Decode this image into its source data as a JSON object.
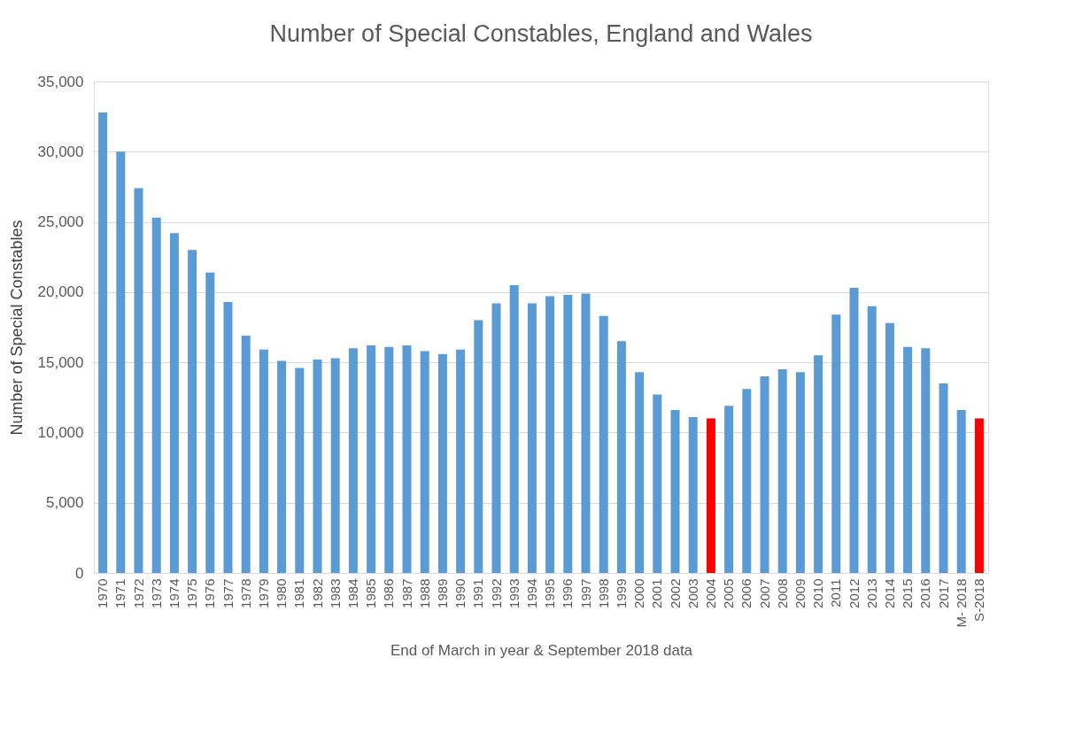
{
  "chart_data": {
    "type": "bar",
    "title": "Number of Special Constables, England and Wales",
    "xlabel": "End of March in year & September 2018 data",
    "ylabel": "Number of Special Constables",
    "categories": [
      "1970",
      "1971",
      "1972",
      "1973",
      "1974",
      "1975",
      "1976",
      "1977",
      "1978",
      "1979",
      "1980",
      "1981",
      "1982",
      "1983",
      "1984",
      "1985",
      "1986",
      "1987",
      "1988",
      "1989",
      "1990",
      "1991",
      "1992",
      "1993",
      "1994",
      "1995",
      "1996",
      "1997",
      "1998",
      "1999",
      "2000",
      "2001",
      "2002",
      "2003",
      "2004",
      "2005",
      "2006",
      "2007",
      "2008",
      "2009",
      "2010",
      "2011",
      "2012",
      "2013",
      "2014",
      "2015",
      "2016",
      "2017",
      "M- 2018",
      "S-2018"
    ],
    "values": [
      32800,
      30000,
      27400,
      25300,
      24200,
      23000,
      21400,
      19300,
      16900,
      15900,
      15100,
      14600,
      15200,
      15300,
      16000,
      16200,
      16100,
      16200,
      15800,
      15600,
      15900,
      18000,
      19200,
      20500,
      19200,
      19700,
      19800,
      19900,
      18300,
      16500,
      14300,
      12700,
      11600,
      11100,
      11000,
      11900,
      13100,
      14000,
      14500,
      14300,
      15500,
      18400,
      20300,
      19000,
      17800,
      16100,
      16000,
      13500,
      11600,
      11000
    ],
    "colors": [
      "#5b9bd5",
      "#5b9bd5",
      "#5b9bd5",
      "#5b9bd5",
      "#5b9bd5",
      "#5b9bd5",
      "#5b9bd5",
      "#5b9bd5",
      "#5b9bd5",
      "#5b9bd5",
      "#5b9bd5",
      "#5b9bd5",
      "#5b9bd5",
      "#5b9bd5",
      "#5b9bd5",
      "#5b9bd5",
      "#5b9bd5",
      "#5b9bd5",
      "#5b9bd5",
      "#5b9bd5",
      "#5b9bd5",
      "#5b9bd5",
      "#5b9bd5",
      "#5b9bd5",
      "#5b9bd5",
      "#5b9bd5",
      "#5b9bd5",
      "#5b9bd5",
      "#5b9bd5",
      "#5b9bd5",
      "#5b9bd5",
      "#5b9bd5",
      "#5b9bd5",
      "#5b9bd5",
      "#ff0000",
      "#5b9bd5",
      "#5b9bd5",
      "#5b9bd5",
      "#5b9bd5",
      "#5b9bd5",
      "#5b9bd5",
      "#5b9bd5",
      "#5b9bd5",
      "#5b9bd5",
      "#5b9bd5",
      "#5b9bd5",
      "#5b9bd5",
      "#5b9bd5",
      "#5b9bd5",
      "#ff0000"
    ],
    "ylim": [
      0,
      35000
    ],
    "yticks": [
      {
        "value": 0,
        "label": "0"
      },
      {
        "value": 5000,
        "label": "5,000"
      },
      {
        "value": 10000,
        "label": "10,000"
      },
      {
        "value": 15000,
        "label": "15,000"
      },
      {
        "value": 20000,
        "label": "20,000"
      },
      {
        "value": 25000,
        "label": "25,000"
      },
      {
        "value": 30000,
        "label": "30,000"
      },
      {
        "value": 35000,
        "label": "35,000"
      }
    ],
    "grid": "y"
  }
}
